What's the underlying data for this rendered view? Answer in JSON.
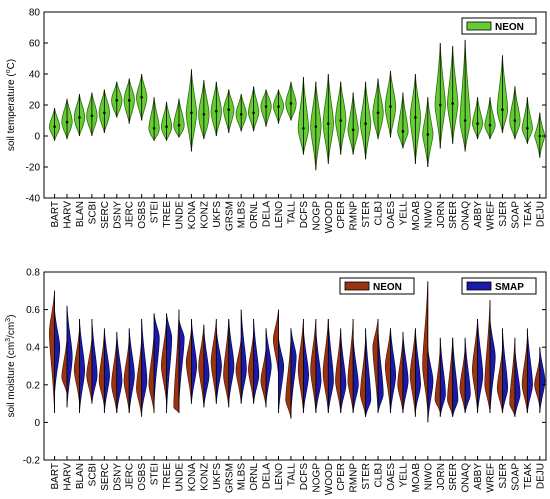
{
  "chart_data": [
    {
      "type": "violin",
      "ylabel": "soil temperature (°C)",
      "ylabel_parts": {
        "prefix": "soil temperature (",
        "superscript": "o",
        "suffix": "C)"
      },
      "ylim": [
        -40,
        80
      ],
      "yticks": [
        -40,
        -20,
        0,
        20,
        40,
        60,
        80
      ],
      "legend": {
        "placement": "top-right",
        "entries": [
          {
            "name": "NEON",
            "color": "#66cc33"
          }
        ]
      },
      "categories": [
        "BART",
        "HARV",
        "BLAN",
        "SCBI",
        "SERC",
        "DSNY",
        "JERC",
        "OSBS",
        "STEI",
        "TREE",
        "UNDE",
        "KONA",
        "KONZ",
        "UKFS",
        "GRSM",
        "MLBS",
        "ORNL",
        "DELA",
        "LENO",
        "TALL",
        "DCFS",
        "NOGP",
        "WOOD",
        "CPER",
        "RMNP",
        "STER",
        "CLBJ",
        "OAES",
        "YELL",
        "MOAB",
        "NIWO",
        "JORN",
        "SRER",
        "ONAQ",
        "ABBY",
        "WREF",
        "SJER",
        "SOAP",
        "TEAK",
        "DEJU"
      ],
      "series": [
        {
          "name": "NEON",
          "color": "#66cc33",
          "min": [
            -3,
            -2,
            0,
            0,
            2,
            12,
            8,
            10,
            -3,
            -3,
            -1,
            -10,
            -2,
            0,
            2,
            3,
            3,
            6,
            8,
            10,
            -12,
            -22,
            -18,
            -12,
            -12,
            -15,
            -2,
            -1,
            -8,
            -18,
            -20,
            -8,
            -5,
            -10,
            -2,
            -2,
            2,
            -2,
            -5,
            -14
          ],
          "q1": [
            3,
            5,
            7,
            8,
            10,
            18,
            18,
            20,
            1,
            2,
            3,
            8,
            6,
            10,
            12,
            10,
            12,
            15,
            16,
            16,
            0,
            0,
            2,
            5,
            0,
            3,
            8,
            12,
            0,
            5,
            -2,
            15,
            15,
            5,
            5,
            4,
            12,
            5,
            2,
            -1
          ],
          "median": [
            6,
            9,
            12,
            13,
            15,
            23,
            23,
            25,
            5,
            6,
            7,
            15,
            14,
            16,
            17,
            14,
            15,
            19,
            19,
            21,
            5,
            6,
            8,
            10,
            4,
            8,
            15,
            19,
            3,
            12,
            1,
            20,
            21,
            10,
            8,
            7,
            17,
            10,
            5,
            0
          ],
          "q3": [
            9,
            14,
            17,
            18,
            20,
            27,
            28,
            29,
            10,
            10,
            12,
            20,
            20,
            21,
            21,
            18,
            20,
            23,
            23,
            25,
            12,
            13,
            15,
            18,
            8,
            13,
            20,
            25,
            8,
            18,
            5,
            26,
            27,
            18,
            11,
            10,
            24,
            15,
            8,
            1
          ],
          "max": [
            18,
            24,
            27,
            28,
            30,
            35,
            37,
            40,
            25,
            22,
            24,
            43,
            36,
            35,
            30,
            27,
            32,
            30,
            30,
            35,
            38,
            35,
            40,
            35,
            28,
            35,
            37,
            42,
            28,
            40,
            25,
            60,
            58,
            62,
            25,
            25,
            52,
            32,
            25,
            15
          ]
        }
      ]
    },
    {
      "type": "split-violin",
      "ylabel": "soil moisture (cm³/cm³)",
      "ylabel_parts": {
        "prefix": "soil moisture (cm",
        "sup1": "3",
        "mid": "/cm",
        "sup2": "3",
        "suffix": ")"
      },
      "ylim": [
        -0.2,
        0.8
      ],
      "yticks": [
        -0.2,
        0,
        0.2,
        0.4,
        0.6,
        0.8
      ],
      "yticklabels": [
        "-0.2",
        "0",
        "0.2",
        "0.4",
        "0.6",
        "0.8"
      ],
      "legend": {
        "placement": "top-right",
        "entries": [
          {
            "name": "NEON",
            "color": "#993311"
          },
          {
            "name": "SMAP",
            "color": "#1a1aaa"
          }
        ]
      },
      "categories": [
        "BART",
        "HARV",
        "BLAN",
        "SCBI",
        "SERC",
        "DSNY",
        "JERC",
        "OSBS",
        "STEI",
        "TREE",
        "UNDE",
        "KONA",
        "KONZ",
        "UKFS",
        "GRSM",
        "MLBS",
        "ORNL",
        "DELA",
        "LENO",
        "TALL",
        "DCFS",
        "NOGP",
        "WOOD",
        "CPER",
        "RMNP",
        "STER",
        "CLBJ",
        "OAES",
        "YELL",
        "MOAB",
        "NIWO",
        "JORN",
        "SRER",
        "ONAQ",
        "ABBY",
        "WREF",
        "SJER",
        "SOAP",
        "TEAK",
        "DEJU"
      ],
      "series": [
        {
          "name": "NEON",
          "color": "#993311",
          "min": [
            0.05,
            0.15,
            0.1,
            0.1,
            0.08,
            0.05,
            0.05,
            0.03,
            0.05,
            0.1,
            0.05,
            0.1,
            0.08,
            0.1,
            0.08,
            0.1,
            0.1,
            0.08,
            0.25,
            0.02,
            0.05,
            0.05,
            0.05,
            0.05,
            0.05,
            0.03,
            0.05,
            0.05,
            0.05,
            0.03,
            0.05,
            0.05,
            0.03,
            0.05,
            0.05,
            0.05,
            0.05,
            0.03,
            0.05,
            0.08
          ],
          "median": [
            0.48,
            0.24,
            0.28,
            0.25,
            0.22,
            0.2,
            0.22,
            0.18,
            0.2,
            0.3,
            0.08,
            0.32,
            0.3,
            0.32,
            0.25,
            0.28,
            0.28,
            0.22,
            0.44,
            0.12,
            0.28,
            0.28,
            0.26,
            0.22,
            0.22,
            0.15,
            0.4,
            0.3,
            0.2,
            0.25,
            0.3,
            0.12,
            0.12,
            0.18,
            0.28,
            0.2,
            0.18,
            0.1,
            0.2,
            0.2
          ],
          "max": [
            0.7,
            0.45,
            0.5,
            0.45,
            0.48,
            0.45,
            0.45,
            0.45,
            0.48,
            0.55,
            0.6,
            0.5,
            0.52,
            0.55,
            0.55,
            0.45,
            0.48,
            0.4,
            0.6,
            0.45,
            0.55,
            0.55,
            0.55,
            0.5,
            0.55,
            0.45,
            0.55,
            0.5,
            0.45,
            0.5,
            0.75,
            0.4,
            0.45,
            0.4,
            0.55,
            0.65,
            0.4,
            0.45,
            0.45,
            0.35
          ]
        },
        {
          "name": "SMAP",
          "color": "#1a1aaa",
          "min": [
            0.15,
            0.08,
            0.05,
            0.1,
            0.05,
            0.05,
            0.05,
            0.05,
            0.1,
            0.05,
            0.1,
            0.1,
            0.08,
            0.1,
            0.1,
            0.1,
            0.1,
            0.1,
            0.05,
            0.05,
            0.05,
            0.05,
            0.05,
            0.05,
            0.05,
            0.03,
            0.05,
            0.05,
            0.05,
            0.05,
            0.0,
            0.03,
            0.03,
            0.05,
            0.05,
            0.05,
            0.05,
            0.03,
            0.05,
            0.05
          ],
          "median": [
            0.4,
            0.35,
            0.28,
            0.25,
            0.25,
            0.22,
            0.25,
            0.22,
            0.45,
            0.45,
            0.45,
            0.3,
            0.25,
            0.3,
            0.3,
            0.28,
            0.25,
            0.3,
            0.3,
            0.35,
            0.25,
            0.22,
            0.22,
            0.2,
            0.2,
            0.12,
            0.15,
            0.25,
            0.22,
            0.2,
            0.22,
            0.15,
            0.12,
            0.15,
            0.25,
            0.35,
            0.18,
            0.15,
            0.2,
            0.22
          ],
          "max": [
            0.6,
            0.62,
            0.55,
            0.55,
            0.5,
            0.48,
            0.5,
            0.55,
            0.58,
            0.58,
            0.55,
            0.55,
            0.5,
            0.5,
            0.55,
            0.6,
            0.55,
            0.5,
            0.45,
            0.5,
            0.5,
            0.5,
            0.55,
            0.48,
            0.45,
            0.5,
            0.5,
            0.5,
            0.48,
            0.5,
            0.4,
            0.45,
            0.45,
            0.45,
            0.55,
            0.55,
            0.5,
            0.4,
            0.5,
            0.4
          ]
        }
      ]
    }
  ]
}
